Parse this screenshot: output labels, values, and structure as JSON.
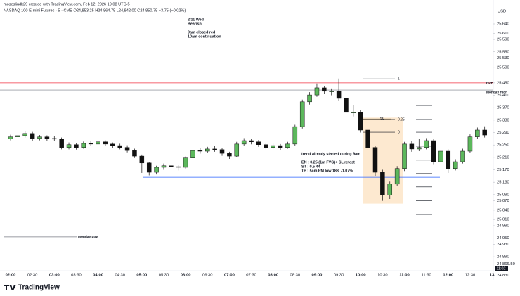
{
  "header": {
    "author_line": "mosesliudk29 created with TradingView.com, Feb 12, 2026 19:08 UTC-5",
    "symbol_line": "NASDAQ 100 E-mini Futures · 5 · CME  O24,853.25  H24,864.75  L24,842.00  C24,850.75  −3.75 (−0.02%)",
    "currency": "USD",
    "countdown": "11:02"
  },
  "footer": {
    "logo": "TradingView"
  },
  "chart_data": {
    "type": "candlestick",
    "categories": [
      "02:00",
      null,
      null,
      "02:30",
      null,
      null,
      "03:00",
      null,
      null,
      "03:30",
      null,
      null,
      "04:00",
      null,
      null,
      "04:30",
      null,
      null,
      "05:00",
      null,
      null,
      "05:30",
      null,
      null,
      "06:00",
      null,
      null,
      "06:30",
      null,
      null,
      "07:00",
      null,
      null,
      "07:30",
      null,
      null,
      "08:00",
      null,
      null,
      "08:30",
      null,
      null,
      "09:00",
      null,
      null,
      "09:30",
      null,
      null,
      "10:00",
      null,
      null,
      "10:30",
      null,
      null,
      "11:00",
      null,
      null,
      "11:30",
      null,
      null,
      "12:00",
      null,
      null,
      "12:30",
      null,
      null,
      "13"
    ],
    "open": [
      25270,
      25276,
      25280,
      25287,
      25271,
      25276,
      25271,
      25269,
      25242,
      25251,
      25242,
      25255,
      25253,
      25260,
      25253,
      25248,
      25242,
      25232,
      25214,
      25192,
      25162,
      25178,
      25183,
      25180,
      25178,
      25208,
      25232,
      25230,
      25237,
      25235,
      25223,
      25214,
      25253,
      25264,
      25260,
      25251,
      25242,
      25248,
      25242,
      25253,
      25309,
      25389,
      25411,
      25434,
      25423,
      25423,
      25400,
      25355,
      25355,
      25298,
      25242,
      25162,
      25088,
      25124,
      25174,
      25253,
      25237,
      25242,
      25264,
      25196,
      25230,
      25174,
      25196,
      25230,
      25276,
      25298,
      null
    ],
    "high": [
      25283,
      25288,
      25295,
      25292,
      25282,
      25281,
      25278,
      25274,
      25258,
      25256,
      25261,
      25262,
      25266,
      25265,
      25258,
      25254,
      25249,
      25238,
      25219,
      25196,
      25183,
      25190,
      25188,
      25186,
      25213,
      25238,
      25240,
      25244,
      25246,
      25240,
      25228,
      25260,
      25272,
      25270,
      25266,
      25256,
      25255,
      25253,
      25260,
      25315,
      25396,
      25420,
      25448,
      25440,
      25432,
      25464,
      25410,
      25378,
      25362,
      25304,
      25248,
      25170,
      25132,
      25182,
      25260,
      25264,
      25270,
      25272,
      25270,
      25250,
      25236,
      25204,
      25238,
      25284,
      25306,
      25310,
      null
    ],
    "low": [
      25265,
      25270,
      25274,
      25264,
      25265,
      25262,
      25262,
      25236,
      25236,
      25235,
      25238,
      25246,
      25248,
      25246,
      25240,
      25236,
      25226,
      25208,
      25160,
      25152,
      25155,
      25170,
      25172,
      25168,
      25174,
      25203,
      25222,
      25224,
      25228,
      25215,
      25205,
      25210,
      25248,
      25252,
      25244,
      25236,
      25236,
      25234,
      25238,
      25248,
      25303,
      25380,
      25405,
      25414,
      25410,
      25392,
      25345,
      25342,
      25290,
      25232,
      25150,
      25070,
      25076,
      25118,
      25166,
      25228,
      25230,
      25236,
      25188,
      25190,
      25160,
      25168,
      25190,
      25224,
      25270,
      25274,
      null
    ],
    "close": [
      25276,
      25280,
      25287,
      25271,
      25276,
      25271,
      25269,
      25242,
      25251,
      25242,
      25255,
      25253,
      25260,
      25253,
      25248,
      25242,
      25232,
      25214,
      25192,
      25162,
      25178,
      25183,
      25180,
      25178,
      25208,
      25232,
      25230,
      25237,
      25235,
      25223,
      25214,
      25253,
      25264,
      25260,
      25251,
      25242,
      25248,
      25242,
      25253,
      25309,
      25389,
      25411,
      25434,
      25423,
      25423,
      25400,
      25355,
      25355,
      25298,
      25242,
      25162,
      25088,
      25124,
      25174,
      25253,
      25237,
      25242,
      25264,
      25196,
      25230,
      25174,
      25196,
      25230,
      25276,
      25298,
      25282,
      null
    ],
    "up_color": "#5cb85c",
    "down_color": "#111111",
    "ylim": [
      24845,
      25717
    ],
    "yticks": [
      {
        "value": 25640,
        "label": "25,640"
      },
      {
        "value": 25610,
        "label": "25,610"
      },
      {
        "value": 25590,
        "label": "25,590"
      },
      {
        "value": 25550,
        "label": "25,550"
      },
      {
        "value": 25530,
        "label": "25,530"
      },
      {
        "value": 25500,
        "label": "25,500"
      },
      {
        "value": 25450,
        "label": "25,450"
      },
      {
        "value": 25410,
        "label": "25,410"
      },
      {
        "value": 25370,
        "label": "25,370"
      },
      {
        "value": 25330,
        "label": "25,330"
      },
      {
        "value": 25290,
        "label": "25,290"
      },
      {
        "value": 25250,
        "label": "25,250"
      },
      {
        "value": 25210,
        "label": "25,210"
      },
      {
        "value": 25170,
        "label": "25,170"
      },
      {
        "value": 25130,
        "label": "25,130"
      },
      {
        "value": 25090,
        "label": "25,090"
      },
      {
        "value": 25070,
        "label": "25,070"
      },
      {
        "value": 25040,
        "label": "25,040"
      },
      {
        "value": 25010,
        "label": "25,010"
      },
      {
        "value": 24990,
        "label": "24,990"
      },
      {
        "value": 24950,
        "label": "24,950"
      },
      {
        "value": 24930,
        "label": "24,930"
      },
      {
        "value": 24890,
        "label": "24,890"
      },
      {
        "value": 24866.5,
        "label": "24,866.50"
      },
      {
        "value": 24830,
        "label": "24,830"
      }
    ],
    "levels": [
      {
        "value": 25450,
        "label": "PDH",
        "color": "#f23645"
      },
      {
        "value": 25427,
        "label": "Monday High",
        "color": "#787b86"
      },
      {
        "value": 24954,
        "label": "Monday Low",
        "color": "#787b86"
      },
      {
        "value": 25146,
        "color": "#2962ff"
      }
    ],
    "fib": [
      {
        "value": 25463,
        "label": "1"
      },
      {
        "value": 25332,
        "label": "0.25"
      },
      {
        "value": 25291,
        "label": "0"
      }
    ],
    "sl": {
      "value": 25334,
      "label": "SL"
    },
    "box": {
      "top": 25338,
      "bottom": 25061,
      "color": "#fde3c4"
    },
    "targets": [
      25377,
      25332,
      25291,
      25246,
      25201,
      25158,
      25115,
      25070,
      25026
    ],
    "annotations": [
      {
        "lines": [
          "2/11 Wed",
          "Bearish",
          "",
          "9am closed red",
          "10am continuation"
        ]
      },
      {
        "lines": [
          "trend already started during 9am",
          "",
          "EN : 0.25 (1m FVG)+ SL retest",
          "ST : 0.5    44",
          "TP : 5am PM low  188.  -1.07%"
        ]
      }
    ]
  }
}
